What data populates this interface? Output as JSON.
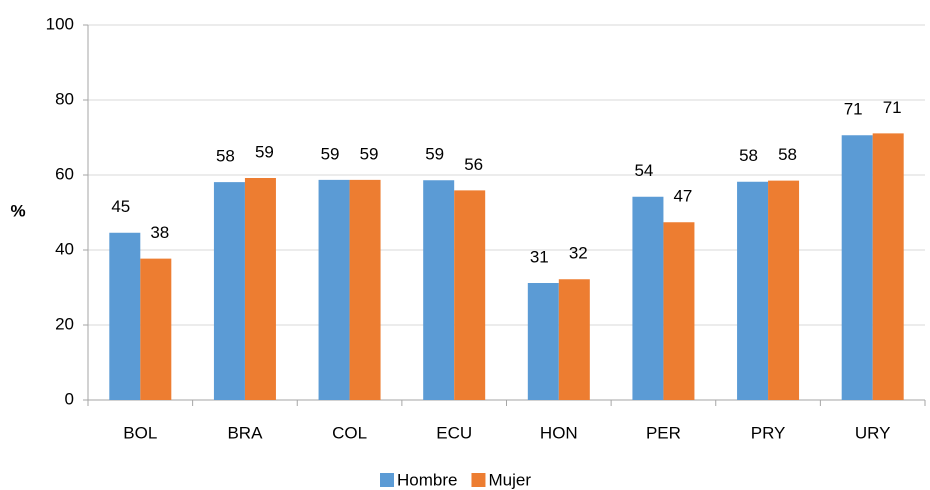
{
  "chart_data": {
    "type": "bar",
    "y_label": "%",
    "categories": [
      "BOL",
      "BRA",
      "COL",
      "ECU",
      "HON",
      "PER",
      "PRY",
      "URY"
    ],
    "series": [
      {
        "name": "Hombre",
        "color": "#5b9bd5",
        "values": [
          44.6,
          58.1,
          58.7,
          58.6,
          31.2,
          54.2,
          58.2,
          70.6
        ],
        "value_labels": [
          "45",
          "58",
          "59",
          "59",
          "31",
          "54",
          "58",
          "71"
        ]
      },
      {
        "name": "Mujer",
        "color": "#ed7d31",
        "values": [
          37.7,
          59.2,
          58.7,
          55.9,
          32.2,
          47.4,
          58.5,
          71.1
        ],
        "value_labels": [
          "38",
          "59",
          "59",
          "56",
          "32",
          "47",
          "58",
          "71"
        ]
      }
    ],
    "ylim": [
      0,
      100
    ],
    "yticks": [
      0,
      20,
      40,
      60,
      80,
      100
    ],
    "grid": true,
    "legend": "bottom"
  }
}
